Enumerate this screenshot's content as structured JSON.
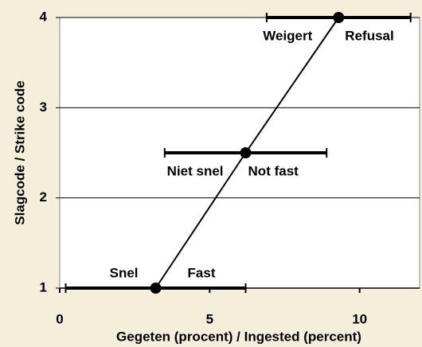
{
  "chart_data": {
    "type": "line",
    "x_label": "Gegeten (procent)  /  Ingested (percent)",
    "y_label": "Slagcode  /  Strike code",
    "xlim": [
      0,
      12
    ],
    "xticks": [
      0,
      5,
      10
    ],
    "ylim": [
      1,
      4
    ],
    "yticks": [
      1,
      2,
      3,
      4
    ],
    "grid": true,
    "series": [
      {
        "color": "#000000",
        "x": [
          3.2,
          6.2,
          9.3
        ],
        "values": [
          1,
          2.5,
          4
        ],
        "xerr": [
          3.0,
          2.7,
          2.4
        ]
      }
    ],
    "annotations": [
      [
        "Snel",
        "Fast"
      ],
      [
        "Niet snel",
        "Not fast"
      ],
      [
        "Weigert",
        "Refusal"
      ]
    ]
  }
}
